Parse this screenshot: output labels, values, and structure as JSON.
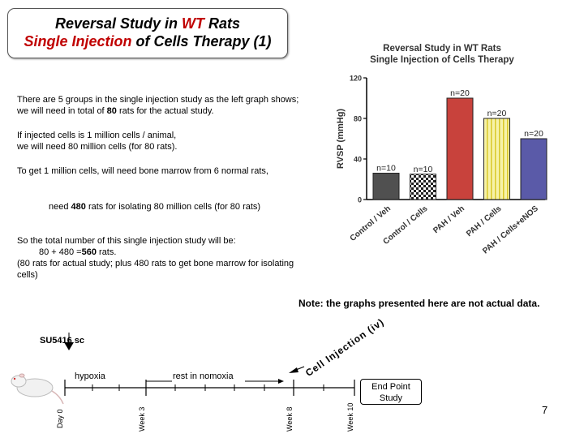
{
  "slide": {
    "title_line1_pre": "Reversal Study in ",
    "title_line1_red": "WT",
    "title_line1_post": " Rats",
    "title_line2_red": "Single Injection",
    "title_line2_post": " of Cells Therapy (1)",
    "para1_a": "There are 5 groups in the single injection study as the left graph shows;",
    "para1_b": "we will need  in total of ",
    "para1_bold": "80",
    "para1_c": " rats for the actual study.",
    "para2_a": "If injected cells  is 1 million cells / animal,",
    "para2_b": "we will need 80 million cells (for 80 rats).",
    "para3": "To get 1 million cells, will need bone marrow from 6 normal rats,",
    "para4_a": "need ",
    "para4_bold": "480",
    "para4_b": " rats for isolating 80 million cells (for 80 rats)",
    "para5_a": "So the total number of this single injection study will be:",
    "para5_b": "80 + 480 =",
    "para5_bold": "560",
    "para5_c": " rats.",
    "para5_d": "(80 rats for actual study; plus 480 rats to get bone marrow for isolating",
    "para5_e": "cells)",
    "note": "Note: the graphs presented here are not actual data.",
    "page_number": "7"
  },
  "timeline": {
    "su5416": "SU5416 sc",
    "hypoxia": "hypoxia",
    "rest": "rest in nomoxia",
    "injection": "Cell Injection (iv)",
    "end_point": [
      "End Point",
      "Study"
    ],
    "weeks": [
      "Day 0",
      "Week 3",
      "Week 8",
      "Week 10"
    ]
  },
  "chart_data": {
    "type": "bar",
    "title": "Reversal Study in WT Rats",
    "subtitle": "Single Injection of Cells Therapy",
    "ylabel": "RVSP (mmHg)",
    "ylim": [
      0,
      120
    ],
    "yticks": [
      "0",
      "40",
      "80",
      "120"
    ],
    "categories": [
      "Control / Veh",
      "Control / Cells",
      "PAH / Veh",
      "PAH / Cells",
      "PAH / Cells+eNOS"
    ],
    "values": [
      26,
      25,
      100,
      80,
      60
    ],
    "labels": [
      "n=10",
      "n=10",
      "n=20",
      "n=20",
      "n=20"
    ],
    "colors": [
      "#505050",
      "checker",
      "#c8423c",
      "yellow-stripe",
      "#5a5aa8"
    ]
  }
}
